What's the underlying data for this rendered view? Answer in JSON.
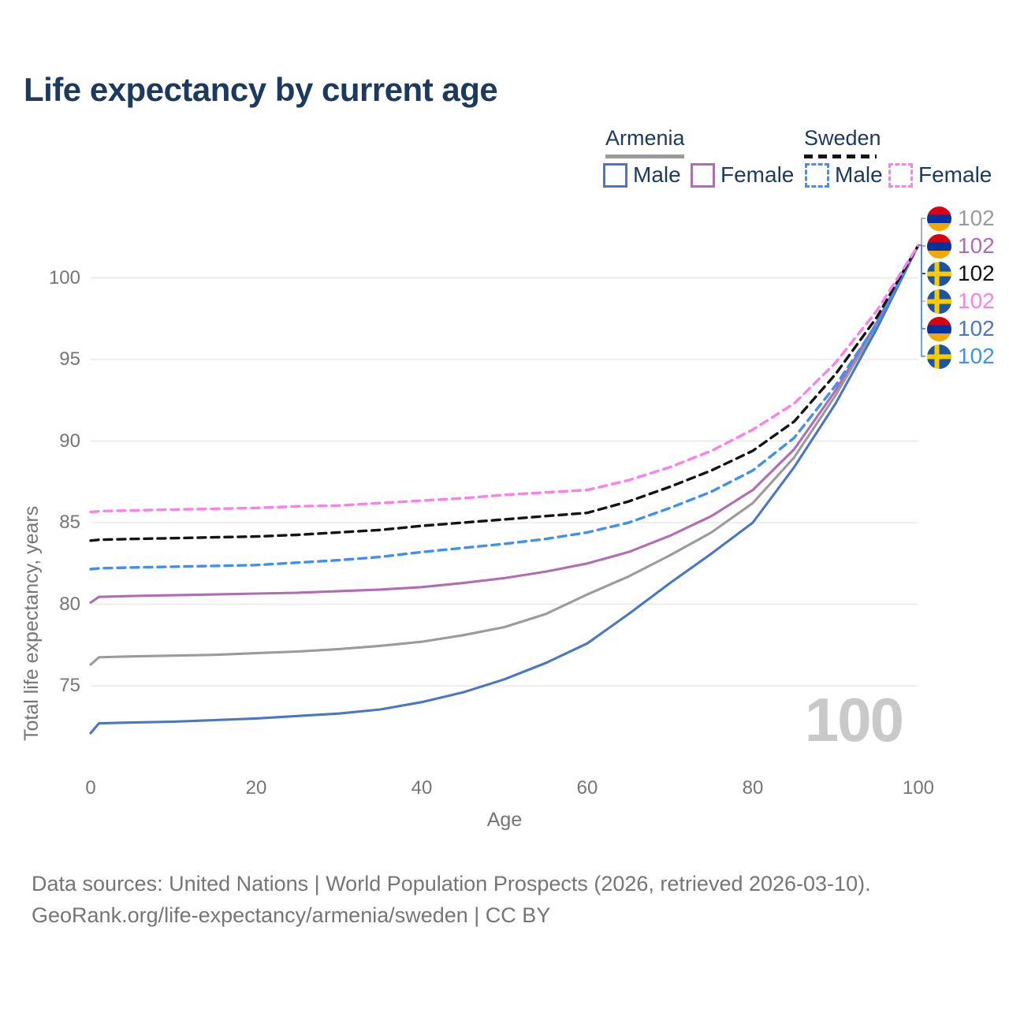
{
  "title": "Life expectancy by current age",
  "legend": {
    "groups": [
      {
        "label": "Armenia",
        "style": "solid",
        "underline_color": "#9b9b9b"
      },
      {
        "label": "Sweden",
        "style": "dashed",
        "underline_color": "#141414"
      }
    ],
    "items": [
      {
        "label": "Male",
        "color": "#4a77c4",
        "dash": false
      },
      {
        "label": "Female",
        "color": "#b06cb4",
        "dash": false
      },
      {
        "label": "Male",
        "color": "#4090f0",
        "dash": true
      },
      {
        "label": "Female",
        "color": "#fc80e8",
        "dash": true
      }
    ]
  },
  "chart_data": {
    "type": "line",
    "title": "Life expectancy by current age",
    "xlabel": "Age",
    "ylabel": "Total life expectancy, years",
    "xticks": [
      0,
      20,
      40,
      60,
      80,
      100
    ],
    "yticks": [
      75,
      80,
      85,
      90,
      95,
      100
    ],
    "xlim": [
      0,
      100
    ],
    "ylim": [
      72,
      103.5
    ],
    "grid": "horizontal",
    "gridline_color": "#e8e8e8",
    "x": [
      0,
      1,
      5,
      10,
      15,
      20,
      25,
      30,
      35,
      40,
      45,
      50,
      55,
      60,
      65,
      70,
      75,
      80,
      85,
      90,
      95,
      100
    ],
    "series": [
      {
        "id": "armenia-total",
        "name": "Armenia (both sexes)",
        "country": "Armenia",
        "color": "#9b9b9b",
        "dash": false,
        "values": [
          76.3,
          76.75,
          76.8,
          76.85,
          76.9,
          77.0,
          77.1,
          77.25,
          77.45,
          77.7,
          78.1,
          78.6,
          79.4,
          80.6,
          81.7,
          83.0,
          84.4,
          86.2,
          89.0,
          92.8,
          97.1,
          102
        ]
      },
      {
        "id": "armenia-female",
        "name": "Armenia Female",
        "country": "Armenia",
        "color": "#b06cb4",
        "dash": false,
        "values": [
          80.1,
          80.45,
          80.5,
          80.55,
          80.6,
          80.65,
          80.7,
          80.8,
          80.9,
          81.05,
          81.3,
          81.6,
          82.0,
          82.5,
          83.2,
          84.2,
          85.4,
          87.0,
          89.5,
          93.1,
          97.3,
          102
        ]
      },
      {
        "id": "armenia-male",
        "name": "Armenia Male",
        "country": "Armenia",
        "color": "#4a77c4",
        "dash": false,
        "values": [
          72.1,
          72.7,
          72.75,
          72.8,
          72.9,
          73.0,
          73.15,
          73.3,
          73.55,
          74.0,
          74.6,
          75.4,
          76.4,
          77.6,
          79.4,
          81.3,
          83.1,
          85.0,
          88.4,
          92.3,
          96.9,
          102
        ]
      },
      {
        "id": "sweden-male",
        "name": "Sweden Male",
        "country": "Sweden",
        "color": "#4090f0",
        "dash": true,
        "values": [
          82.15,
          82.2,
          82.25,
          82.3,
          82.35,
          82.4,
          82.55,
          82.7,
          82.9,
          83.2,
          83.45,
          83.7,
          84.0,
          84.4,
          85.0,
          85.9,
          86.9,
          88.2,
          90.2,
          93.4,
          97.2,
          102
        ]
      },
      {
        "id": "sweden-total",
        "name": "Sweden (both sexes)",
        "country": "Sweden",
        "color": "#141414",
        "dash": true,
        "values": [
          83.9,
          83.95,
          84.0,
          84.05,
          84.1,
          84.15,
          84.25,
          84.4,
          84.55,
          84.8,
          85.0,
          85.2,
          85.4,
          85.6,
          86.3,
          87.2,
          88.2,
          89.4,
          91.2,
          94.1,
          97.6,
          102
        ]
      },
      {
        "id": "sweden-female",
        "name": "Sweden Female",
        "country": "Sweden",
        "color": "#fc80e8",
        "dash": true,
        "values": [
          85.65,
          85.7,
          85.75,
          85.8,
          85.85,
          85.9,
          86.0,
          86.05,
          86.2,
          86.35,
          86.5,
          86.7,
          86.85,
          87.0,
          87.6,
          88.4,
          89.4,
          90.7,
          92.3,
          94.8,
          98.0,
          102
        ]
      }
    ],
    "end_labels": [
      {
        "flag": "armenia",
        "value": "102",
        "color": "#9b9b9b",
        "series": "armenia-total"
      },
      {
        "flag": "armenia",
        "value": "102",
        "color": "#b06cb4",
        "series": "armenia-female"
      },
      {
        "flag": "sweden",
        "value": "102",
        "color": "#141414",
        "series": "sweden-total"
      },
      {
        "flag": "sweden",
        "value": "102",
        "color": "#fc80e8",
        "series": "sweden-female"
      },
      {
        "flag": "armenia",
        "value": "102",
        "color": "#4a77c4",
        "series": "armenia-male"
      },
      {
        "flag": "sweden",
        "value": "102",
        "color": "#4090f0",
        "series": "sweden-male"
      }
    ],
    "hover_age_watermark": "100"
  },
  "footer": {
    "line1": "Data sources: United Nations | World Population Prospects (2026, retrieved 2026-03-10).",
    "line2": "GeoRank.org/life-expectancy/armenia/sweden | CC BY"
  }
}
